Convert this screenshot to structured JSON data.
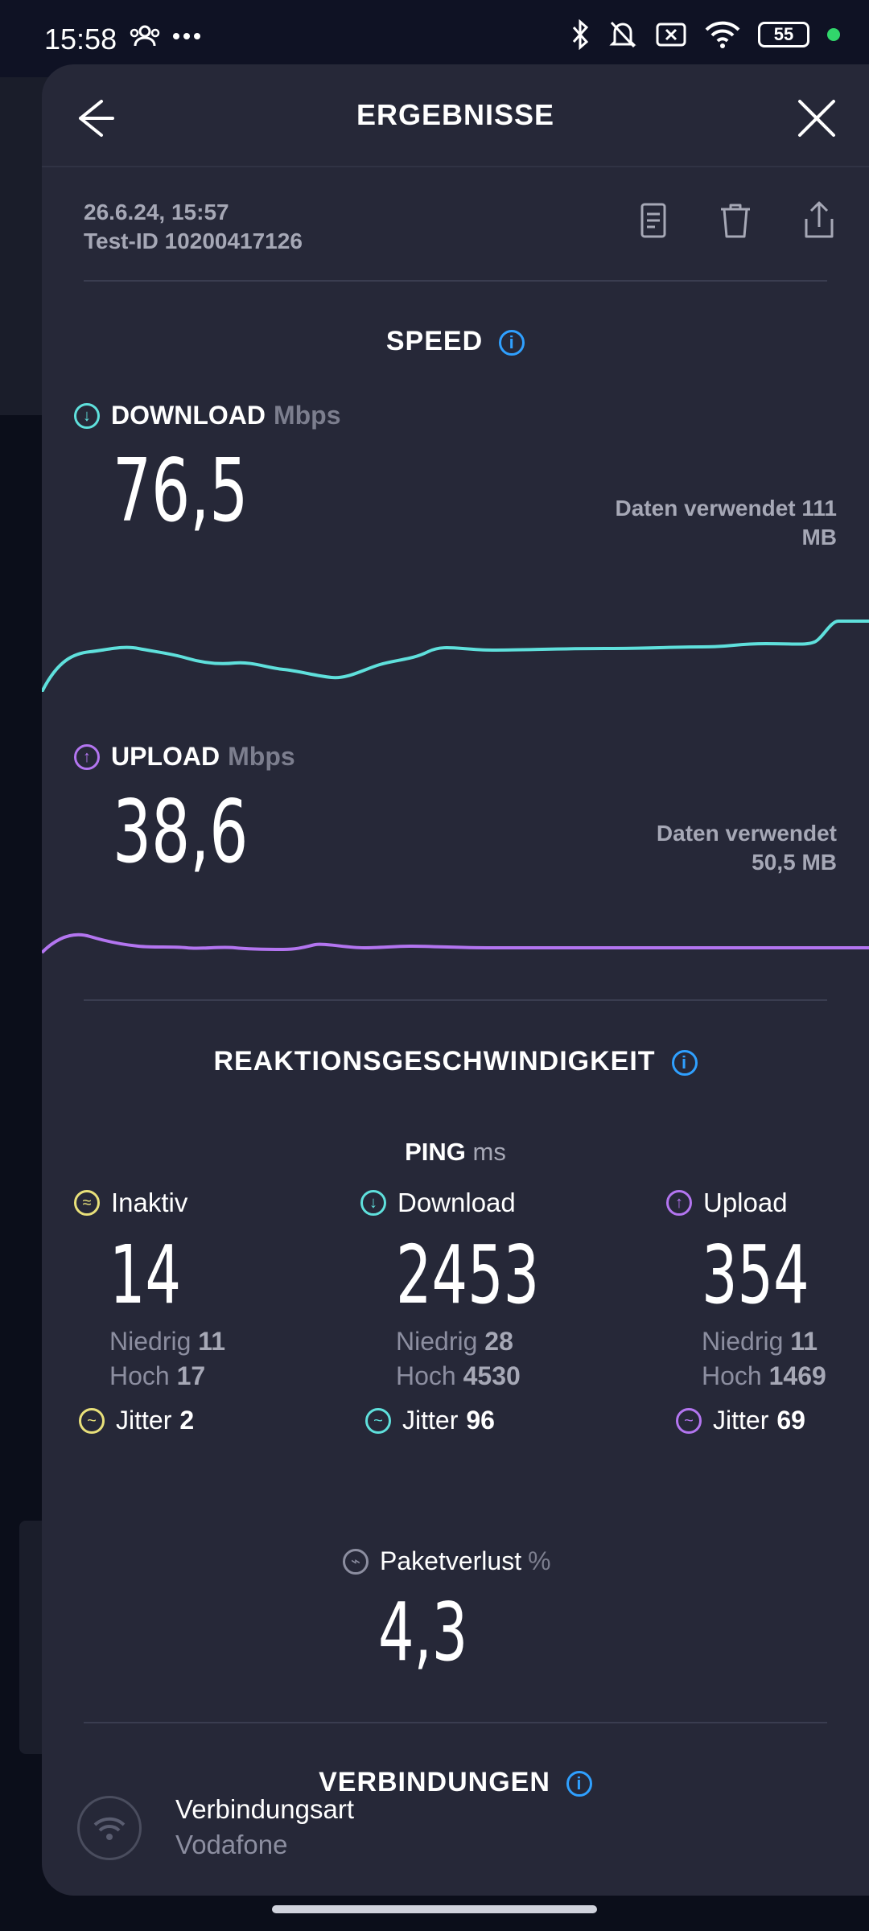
{
  "status_bar": {
    "time": "15:58",
    "battery": "55"
  },
  "header": {
    "title": "ERGEBNISSE"
  },
  "meta": {
    "date": "26.6.24, 15:57",
    "test_id": "Test-ID 10200417126"
  },
  "speed": {
    "title": "SPEED",
    "download": {
      "label": "DOWNLOAD",
      "unit": "Mbps",
      "value": "76,5",
      "used_line1": "Daten verwendet 111",
      "used_line2": "MB",
      "color": "#5fe0dc"
    },
    "upload": {
      "label": "UPLOAD",
      "unit": "Mbps",
      "value": "38,6",
      "used_line1": "Daten verwendet",
      "used_line2": "50,5 MB",
      "color": "#b375f0"
    }
  },
  "responsiveness": {
    "title": "REAKTIONSGESCHWINDIGKEIT",
    "ping_label": "PING",
    "ping_unit": "ms",
    "idle": {
      "label": "Inaktiv",
      "value": "14",
      "low_label": "Niedrig",
      "low": "11",
      "high_label": "Hoch",
      "high": "17",
      "jitter_label": "Jitter",
      "jitter": "2",
      "color": "#e8e07a"
    },
    "download": {
      "label": "Download",
      "value": "2453",
      "low_label": "Niedrig",
      "low": "28",
      "high_label": "Hoch",
      "high": "4530",
      "jitter_label": "Jitter",
      "jitter": "96",
      "color": "#5fe0dc"
    },
    "upload": {
      "label": "Upload",
      "value": "354",
      "low_label": "Niedrig",
      "low": "11",
      "high_label": "Hoch",
      "high": "1469",
      "jitter_label": "Jitter",
      "jitter": "69",
      "color": "#b375f0"
    },
    "packet_loss": {
      "label": "Paketverlust",
      "unit": "%",
      "value": "4,3"
    }
  },
  "connections": {
    "title": "VERBINDUNGEN",
    "type_label": "Verbindungsart",
    "type_value": "Vodafone"
  }
}
